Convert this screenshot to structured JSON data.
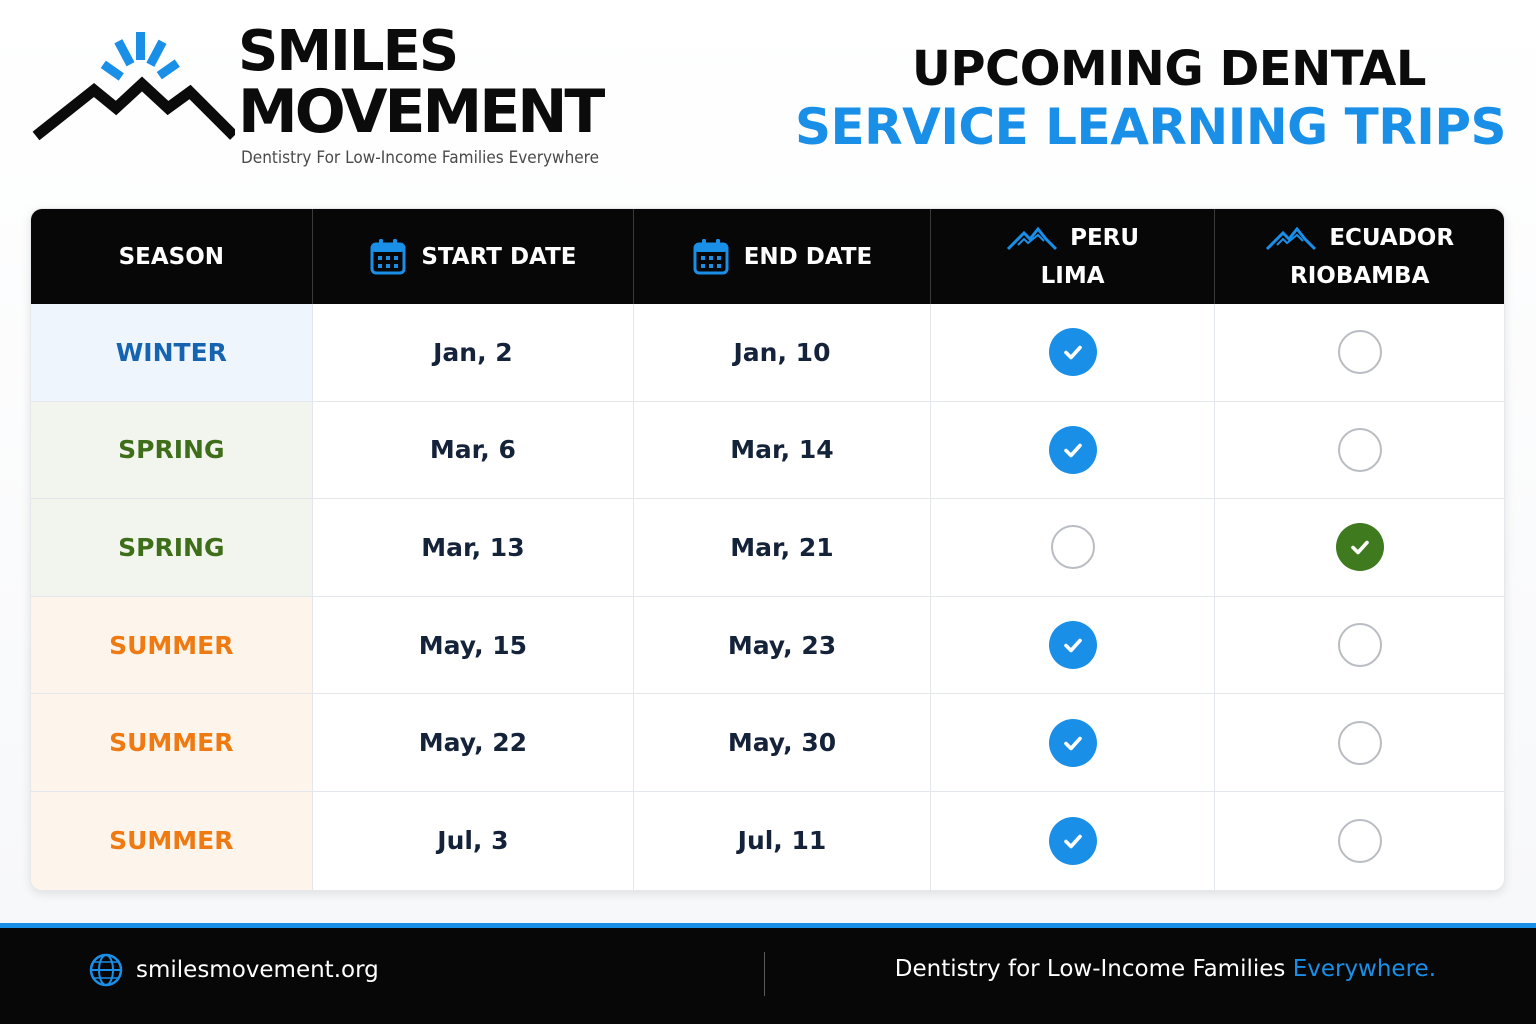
{
  "brand": {
    "line1": "SMILES",
    "line2": "MOVEMENT",
    "tagline": "Dentistry For Low-Income Families Everywhere"
  },
  "title": {
    "line1": "UPCOMING DENTAL",
    "line2": "SERVICE LEARNING TRIPS"
  },
  "table": {
    "headers": {
      "season": "SEASON",
      "start": "START DATE",
      "end": "END DATE",
      "loc1_country": "PERU",
      "loc1_city": "LIMA",
      "loc2_country": "ECUADOR",
      "loc2_city": "RIOBAMBA"
    },
    "rows": [
      {
        "season": "WINTER",
        "start": "Jan, 2",
        "end": "Jan, 10",
        "peru": true,
        "ecuador": false
      },
      {
        "season": "SPRING",
        "start": "Mar, 6",
        "end": "Mar, 14",
        "peru": true,
        "ecuador": false
      },
      {
        "season": "SPRING",
        "start": "Mar, 13",
        "end": "Mar, 21",
        "peru": false,
        "ecuador": true
      },
      {
        "season": "SUMMER",
        "start": "May, 15",
        "end": "May, 23",
        "peru": true,
        "ecuador": false
      },
      {
        "season": "SUMMER",
        "start": "May, 22",
        "end": "May, 30",
        "peru": true,
        "ecuador": false
      },
      {
        "season": "SUMMER",
        "start": "Jul, 3",
        "end": "Jul, 11",
        "peru": true,
        "ecuador": false
      }
    ],
    "season_colors": {
      "WINTER": {
        "text": "#1663b0",
        "bg": "#eef5fd"
      },
      "SPRING": {
        "text": "#3f6e1a",
        "bg": "#f2f5ee"
      },
      "SUMMER": {
        "text": "#ef7a12",
        "bg": "#fdf5ec"
      }
    },
    "check_colors": {
      "peru": "#1a8fe8",
      "ecuador": "#3f7a1f"
    }
  },
  "footer": {
    "url": "smilesmovement.org",
    "tagline_main": "Dentistry for Low-Income Families ",
    "tagline_accent": "Everywhere."
  },
  "icons": {
    "calendar": "calendar-icon",
    "mountain": "mountain-icon",
    "globe": "globe-icon",
    "check": "check-icon"
  },
  "colors": {
    "accent": "#1a8fe8",
    "dark": "#070707"
  }
}
